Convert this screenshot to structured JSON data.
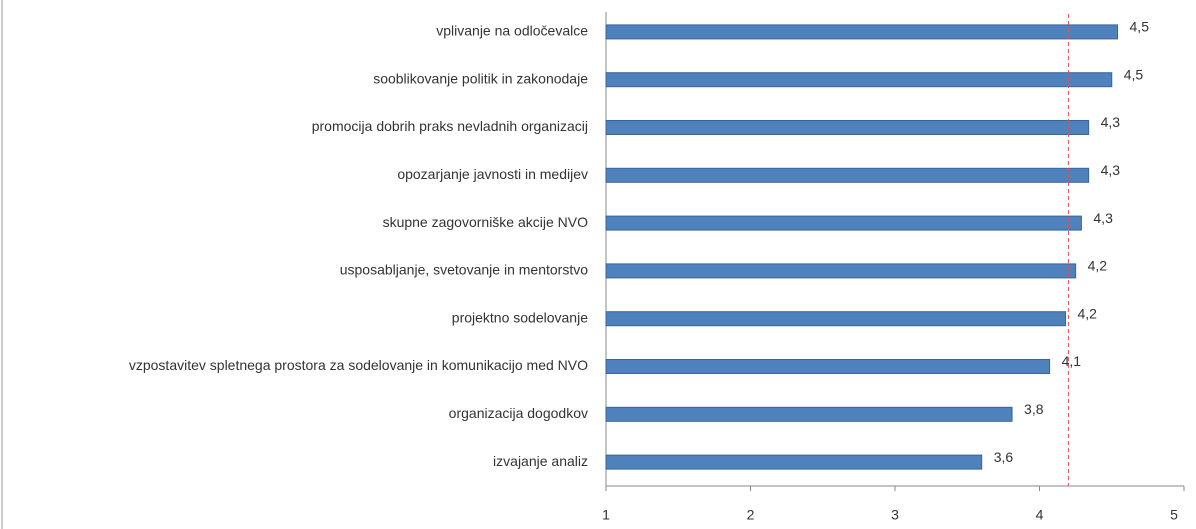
{
  "chart_data": {
    "type": "bar",
    "orientation": "horizontal",
    "categories": [
      "vplivanje na odločevalce",
      "sooblikovanje politik in zakonodaje",
      "promocija dobrih praks nevladnih organizacij",
      "opozarjanje javnosti in medijev",
      "skupne zagovorniške akcije NVO",
      "usposabljanje, svetovanje in mentorstvo",
      "projektno sodelovanje",
      "vzpostavitev spletnega prostora za sodelovanje in komunikacijo med NVO",
      "organizacija dogodkov",
      "izvajanje analiz"
    ],
    "values": [
      4.54,
      4.5,
      4.34,
      4.34,
      4.29,
      4.25,
      4.18,
      4.07,
      3.81,
      3.6
    ],
    "value_labels": [
      "4,5",
      "4,5",
      "4,3",
      "4,3",
      "4,3",
      "4,2",
      "4,2",
      "4,1",
      "3,8",
      "3,6"
    ],
    "color": "#4f81bd",
    "xlim": [
      1,
      5
    ],
    "xticks": [
      1,
      2,
      3,
      4,
      5
    ],
    "reference_line": 4.2,
    "reference_color": "#e05050"
  }
}
